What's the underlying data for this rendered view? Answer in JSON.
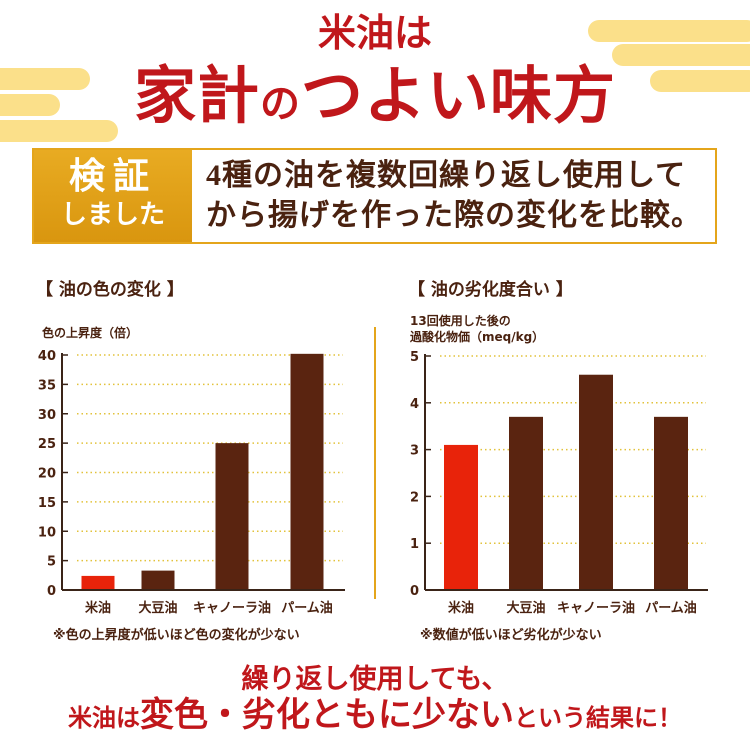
{
  "header": {
    "title_line1": "米油は",
    "title_line2_a": "家計",
    "title_line2_b": "の",
    "title_line2_c": "つよい味方"
  },
  "verification": {
    "badge_line1": "検証",
    "badge_line2": "しました",
    "text_line1": "4種の油を複数回繰り返し使用して",
    "text_line2": "から揚げを作った際の変化を比較。"
  },
  "colors": {
    "title_red": "#c0171b",
    "brown": "#5a2410",
    "rice_oil_red": "#e8230a",
    "gold": "#e4a51b",
    "grid_dots": "#e2c23a"
  },
  "chart_data": [
    {
      "type": "bar",
      "title": "【 油の色の変化 】",
      "ylabel": "色の上昇度（倍）",
      "categories": [
        "米油",
        "大豆油",
        "キャノーラ油",
        "パーム油"
      ],
      "values": [
        2.4,
        3.3,
        25,
        40.2
      ],
      "highlight": "米油",
      "ylim": [
        0,
        40
      ],
      "yticks": [
        0,
        5,
        10,
        15,
        20,
        25,
        30,
        35,
        40
      ],
      "grid": "dotted horizontal",
      "note": "※色の上昇度が低いほど色の変化が少ない"
    },
    {
      "type": "bar",
      "title": "【 油の劣化度合い 】",
      "ylabel_line1": "13回使用した後の",
      "ylabel_line2": "過酸化物価（meq/kg）",
      "categories": [
        "米油",
        "大豆油",
        "キャノーラ油",
        "パーム油"
      ],
      "values": [
        3.1,
        3.7,
        4.6,
        3.7
      ],
      "highlight": "米油",
      "ylim": [
        0,
        5
      ],
      "yticks": [
        0,
        1,
        2,
        3,
        4,
        5
      ],
      "grid": "dotted horizontal",
      "note": "※数値が低いほど劣化が少ない"
    }
  ],
  "conclusion": {
    "line1": "繰り返し使用しても、",
    "line2_a": "米油は",
    "line2_b": "変色・劣化ともに少ない",
    "line2_c": "という結果に！"
  }
}
